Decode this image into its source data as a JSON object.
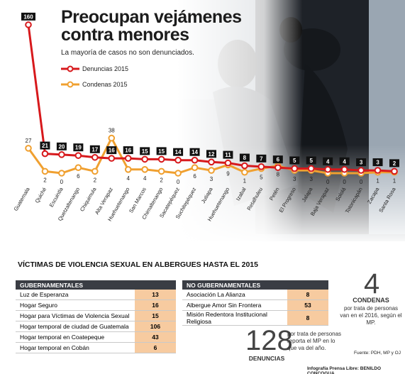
{
  "header": {
    "title_line1": "Preocupan vejámenes",
    "title_line2": "contra menores",
    "subtitle": "La mayoría de casos no son denunciados."
  },
  "legend": {
    "denuncias": "Denuncias 2015",
    "condenas": "Condenas 2015"
  },
  "colors": {
    "denuncias": "#d7191c",
    "condenas": "#f0a030",
    "table_header": "#3a3d44",
    "table_value_bg": "#f7cba0"
  },
  "chart_data": {
    "type": "line",
    "categories": [
      "Guatemala",
      "Quiché",
      "Escuintla",
      "Quetzaltenango",
      "Chiquimula",
      "Alta Verapaz",
      "Huehuetenango",
      "San Marcos",
      "Chimaltenango",
      "Sacatepéquez",
      "Suchitepéquez",
      "Jutiapa",
      "Huehuetenango",
      "Izabal",
      "Retalhuleu",
      "Petén",
      "El Progreso",
      "Jalapa",
      "Baja Verapaz",
      "Sololá",
      "Totonicapán",
      "Zacapa",
      "Santa Rosa"
    ],
    "series": [
      {
        "name": "Denuncias 2015",
        "values": [
          160,
          21,
          20,
          19,
          17,
          16,
          16,
          15,
          15,
          14,
          14,
          12,
          11,
          8,
          7,
          6,
          5,
          5,
          4,
          4,
          3,
          3,
          2
        ]
      },
      {
        "name": "Condenas 2015",
        "values": [
          27,
          2,
          0,
          6,
          2,
          38,
          4,
          4,
          2,
          0,
          6,
          3,
          9,
          1,
          5,
          8,
          3,
          3,
          0,
          0,
          0,
          1,
          1
        ]
      }
    ]
  },
  "section": {
    "title": "VÍCTIMAS DE VIOLENCIA SEXUAL EN ALBERGUES HASTA EL 2015"
  },
  "gubernamentales": {
    "header": "GUBERNAMENTALES",
    "rows": [
      {
        "name": "Luz de Esperanza",
        "value": "13"
      },
      {
        "name": "Hogar Seguro",
        "value": "16"
      },
      {
        "name": "Hogar para Víctimas de Violencia Sexual",
        "value": "15"
      },
      {
        "name": "Hogar temporal de ciudad de Guatemala",
        "value": "106"
      },
      {
        "name": "Hogar temporal en Coatepeque",
        "value": "43"
      },
      {
        "name": "Hogar temporal en Cobán",
        "value": "6"
      }
    ]
  },
  "no_gubernamentales": {
    "header": "NO GUBERNAMENTALES",
    "rows": [
      {
        "name": "Asociación La Alianza",
        "value": "8"
      },
      {
        "name": "Albergue Amor Sin Frontera",
        "value": "53"
      },
      {
        "name": "Misión Redentora Institucional Religiosa",
        "value": "8"
      }
    ]
  },
  "stats": {
    "condenas_num": "4",
    "condenas_label": "CONDENAS",
    "condenas_text": "por trata de personas van en el 2016, según el MP.",
    "denuncias_num": "128",
    "denuncias_label": "DENUNCIAS",
    "denuncias_text": "por trata de personas reporta el MP en lo que va del año."
  },
  "footer": {
    "source": "Fuente: PDH, MP y OJ",
    "credit": "Infografía Prensa Libre: BENILDO CONCOGUA"
  }
}
